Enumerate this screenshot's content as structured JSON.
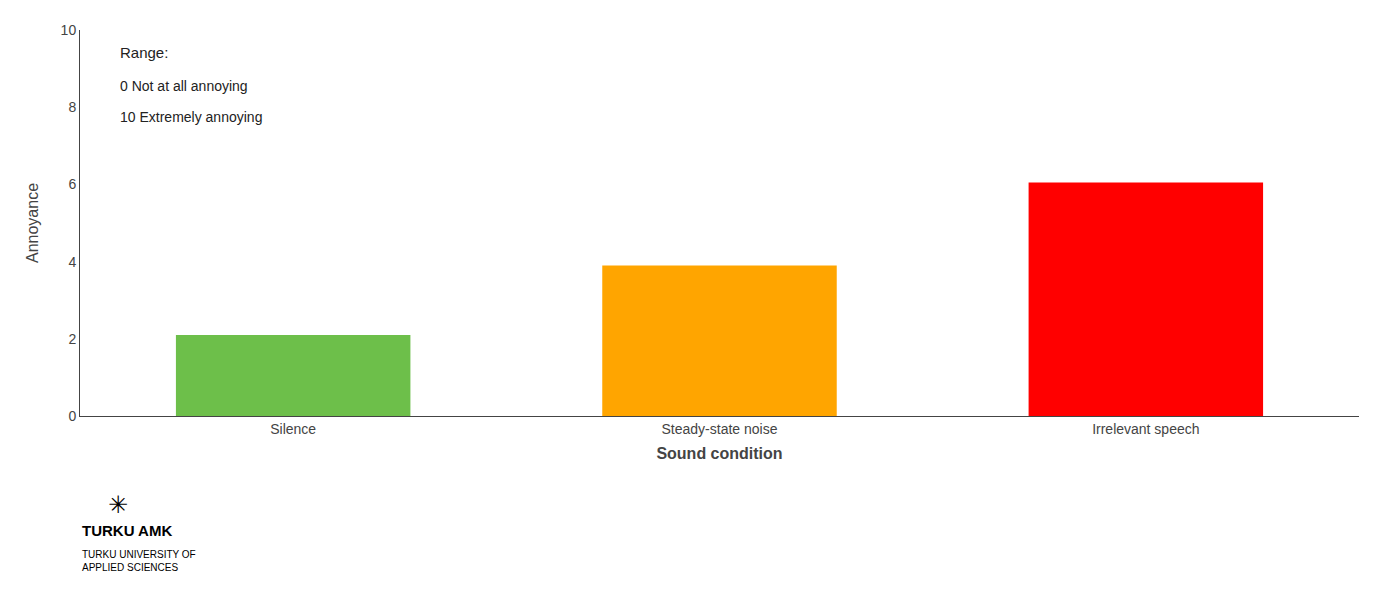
{
  "chart_data": {
    "type": "bar",
    "categories": [
      "Silence",
      "Steady-state noise",
      "Irrelevant speech"
    ],
    "values": [
      2.1,
      3.9,
      6.05
    ],
    "colors": [
      "#6dbf4a",
      "#ffa500",
      "#ff0000"
    ],
    "xlabel": "Sound condition",
    "ylabel": "Annoyance",
    "ylim": [
      0,
      10
    ],
    "yticks": [
      0,
      2,
      4,
      6,
      8,
      10
    ],
    "grid": false,
    "annotations": [
      "Range:",
      "0 Not at all annoying",
      "10 Extremely annoying",
      "✳",
      "TURKU AMK",
      "TURKU UNIVERSITY OF\nAPPLIED SCIENCES"
    ]
  }
}
